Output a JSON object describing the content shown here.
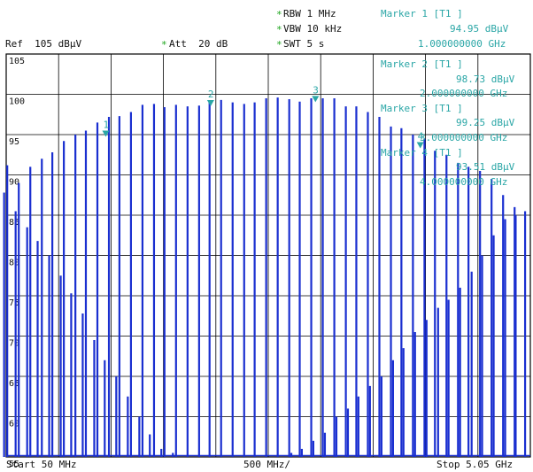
{
  "header": {
    "rbw": "RBW 1 MHz",
    "vbw": "VBW 10 kHz",
    "swt": "SWT 5 s",
    "ref": "Ref  105 dBµV",
    "att": "Att  20 dB",
    "star": "*"
  },
  "markers": [
    {
      "title": "Marker 1 [T1 ]",
      "level": "94.95 dBµV",
      "freq": "1.000000000 GHz"
    },
    {
      "title": "Marker 2 [T1 ]",
      "level": "98.73 dBµV",
      "freq": "2.000000000 GHz"
    },
    {
      "title": "Marker 3 [T1 ]",
      "level": "99.25 dBµV",
      "freq": "3.000000000 GHz"
    },
    {
      "title": "Marker 4 [T1 ]",
      "level": "93.51 dBµV",
      "freq": "4.000000000 GHz"
    }
  ],
  "footer": {
    "start": "Start 50 MHz",
    "div": "500 MHz/",
    "stop": "Stop 5.05 GHz"
  },
  "colors": {
    "trace": "#1a2fd0",
    "grid": "#000000",
    "marker": "#2aa6a6"
  },
  "chart_data": {
    "type": "line",
    "x_unit": "GHz",
    "y_unit": "dBµV",
    "xlim": [
      0.05,
      5.05
    ],
    "ylim": [
      55,
      105
    ],
    "y_ticks": [
      105,
      100,
      95,
      90,
      85,
      80,
      75,
      70,
      65,
      60,
      55
    ],
    "grid": true,
    "series": [
      {
        "peaks_x": [
          0.06,
          0.17,
          0.28,
          0.39,
          0.49,
          0.6,
          0.71,
          0.81,
          0.92,
          1.03,
          1.13,
          1.24,
          1.35,
          1.46,
          1.56,
          1.67,
          1.78,
          1.89,
          1.99,
          2.1,
          2.21,
          2.32,
          2.42,
          2.53,
          2.64,
          2.75,
          2.85,
          2.96,
          3.07,
          3.18,
          3.29,
          3.39,
          3.5,
          3.61,
          3.72,
          3.82,
          3.93,
          4.04,
          4.14,
          4.25,
          4.36,
          4.46,
          4.57,
          4.68,
          4.79,
          4.9,
          5.0
        ],
        "peaks_y": [
          91.2,
          89.0,
          91.0,
          92.0,
          92.8,
          94.2,
          95.0,
          95.5,
          96.5,
          97.2,
          97.3,
          97.8,
          98.7,
          98.8,
          98.4,
          98.7,
          98.5,
          98.6,
          99.0,
          99.3,
          99.0,
          98.8,
          99.0,
          99.5,
          99.6,
          99.4,
          99.1,
          99.5,
          99.5,
          99.5,
          98.5,
          98.5,
          97.8,
          97.2,
          96.0,
          95.8,
          95.0,
          94.5,
          93.0,
          92.5,
          91.5,
          91.0,
          90.5,
          89.5,
          87.5,
          86.0,
          85.5
        ],
        "lobes_x": [
          0.03,
          0.14,
          0.25,
          0.35,
          0.46,
          0.57,
          0.67,
          0.78,
          0.89,
          0.99,
          1.1,
          1.21,
          1.32,
          1.42,
          1.53,
          1.64,
          2.77,
          2.87,
          2.98,
          3.09,
          3.2,
          3.31,
          3.41,
          3.52,
          3.63,
          3.74,
          3.84,
          3.95,
          4.06,
          4.17,
          4.27,
          4.38,
          4.49,
          4.59,
          4.7,
          4.81,
          4.91
        ],
        "lobes_y": [
          87.8,
          85.5,
          83.5,
          81.8,
          80.0,
          77.5,
          75.3,
          72.8,
          69.5,
          67.0,
          65.0,
          62.5,
          60.0,
          57.8,
          56.0,
          55.5,
          55.5,
          56.0,
          57.0,
          58.0,
          60.0,
          61.0,
          62.5,
          63.8,
          65.0,
          67.0,
          68.5,
          70.5,
          72.0,
          73.5,
          74.5,
          76.0,
          78.0,
          80.0,
          82.5,
          84.5,
          85.0
        ]
      }
    ],
    "markers": [
      {
        "n": "1",
        "x": 1.0,
        "y": 94.95
      },
      {
        "n": "2",
        "x": 2.0,
        "y": 98.73
      },
      {
        "n": "3",
        "x": 3.0,
        "y": 99.25
      },
      {
        "n": "4",
        "x": 4.0,
        "y": 93.51
      }
    ]
  }
}
